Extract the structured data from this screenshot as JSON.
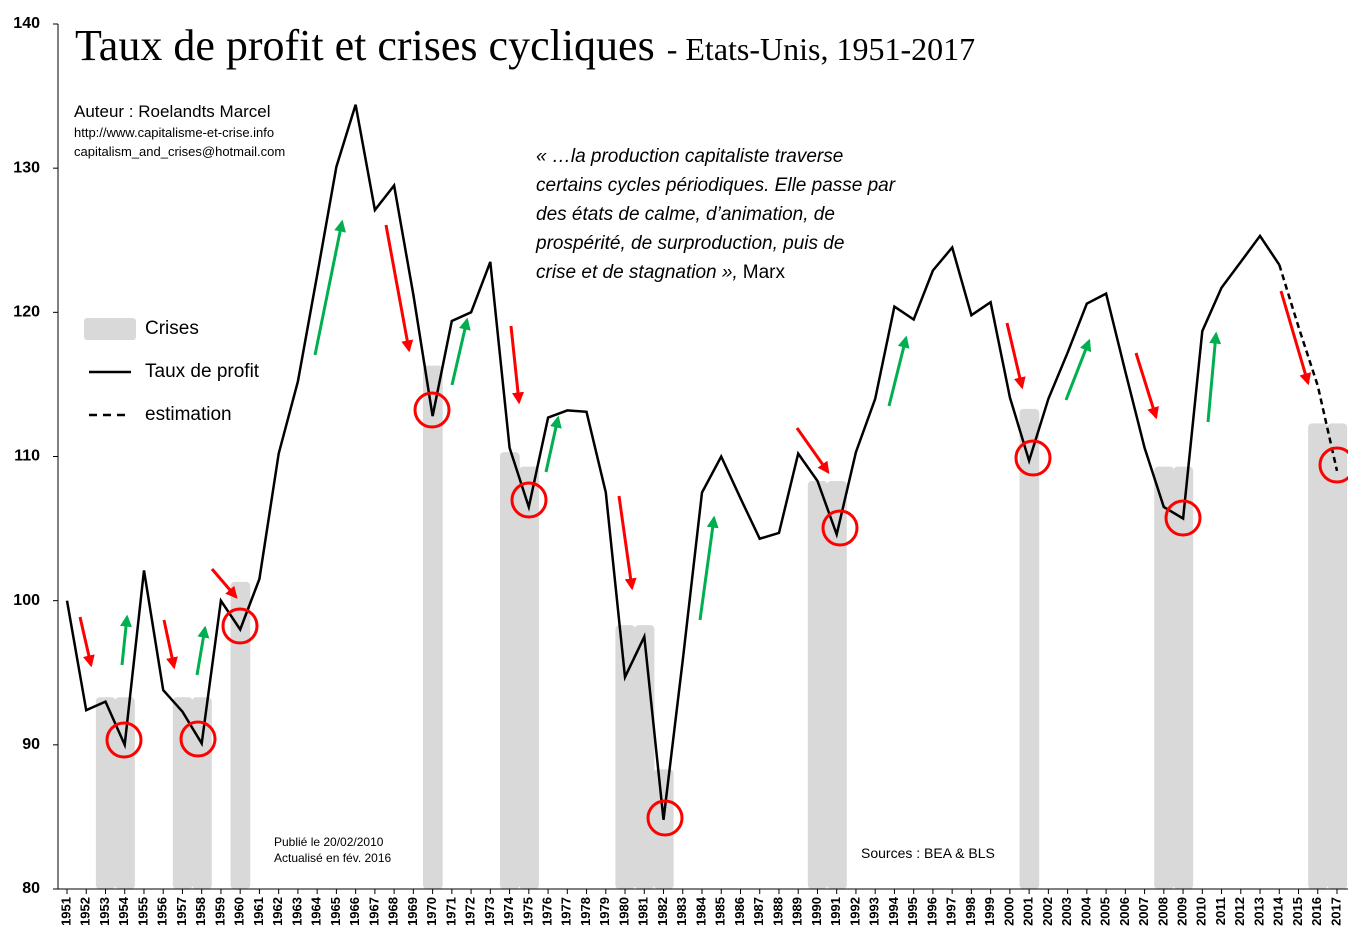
{
  "chart_data": {
    "type": "combo",
    "title": "Taux de profit et crises cycliques",
    "subtitle": "- Etats-Unis, 1951-2017",
    "author": "Auteur : Roelandts Marcel",
    "website": "http://www.capitalisme-et-crise.info",
    "email": "capitalism_and_crises@hotmail.com",
    "quote_lines": [
      "« …la production capitaliste traverse",
      "certains cycles périodiques. Elle passe par",
      "des états de calme, d’animation, de",
      "prospérité, de surproduction, puis de",
      "crise et de stagnation »,"
    ],
    "quote_attribution": "Marx",
    "published": "Publié le 20/02/2010",
    "updated": "Actualisé en fév. 2016",
    "sources": "Sources : BEA & BLS",
    "categories": [
      "1951",
      "1952",
      "1953",
      "1954",
      "1955",
      "1956",
      "1957",
      "1958",
      "1959",
      "1960",
      "1961",
      "1962",
      "1963",
      "1964",
      "1965",
      "1966",
      "1967",
      "1968",
      "1969",
      "1970",
      "1971",
      "1972",
      "1973",
      "1974",
      "1975",
      "1976",
      "1977",
      "1978",
      "1979",
      "1980",
      "1981",
      "1982",
      "1983",
      "1984",
      "1985",
      "1986",
      "1987",
      "1988",
      "1989",
      "1990",
      "1991",
      "1992",
      "1993",
      "1994",
      "1995",
      "1996",
      "1997",
      "1998",
      "1999",
      "2000",
      "2001",
      "2002",
      "2003",
      "2004",
      "2005",
      "2006",
      "2007",
      "2008",
      "2009",
      "2010",
      "2011",
      "2012",
      "2013",
      "2014",
      "2015",
      "2016",
      "2017"
    ],
    "series": [
      {
        "name": "Crises",
        "type": "bar",
        "color": "#d9d9d9",
        "values": [
          null,
          null,
          93.3,
          93.3,
          null,
          null,
          93.3,
          93.3,
          null,
          101.3,
          null,
          null,
          null,
          null,
          null,
          null,
          null,
          null,
          null,
          116.3,
          null,
          null,
          null,
          110.3,
          109.3,
          null,
          null,
          null,
          null,
          98.3,
          98.3,
          88.3,
          null,
          null,
          null,
          null,
          null,
          null,
          null,
          108.3,
          108.3,
          null,
          null,
          null,
          null,
          null,
          null,
          null,
          null,
          null,
          113.3,
          null,
          null,
          null,
          null,
          null,
          null,
          109.3,
          109.3,
          null,
          null,
          null,
          null,
          null,
          null,
          112.3,
          112.3
        ]
      },
      {
        "name": "Taux de profit",
        "type": "line",
        "color": "#000000",
        "dashed": false,
        "values": [
          100,
          92.4,
          93.0,
          90.0,
          102.1,
          93.8,
          92.3,
          90.1,
          100.0,
          98.0,
          101.5,
          110.2,
          115.2,
          122.6,
          130.1,
          134.4,
          127.1,
          128.8,
          121.2,
          112.8,
          119.4,
          120.0,
          123.5,
          110.6,
          106.5,
          112.7,
          113.2,
          113.1,
          107.5,
          94.7,
          97.5,
          84.8,
          95.9,
          107.5,
          110.0,
          107.1,
          104.3,
          104.7,
          110.2,
          108.3,
          104.6,
          110.3,
          114.0,
          120.4,
          119.5,
          122.9,
          124.5,
          119.8,
          120.7,
          114.1,
          109.7,
          114.0,
          117.2,
          120.6,
          121.3,
          115.9,
          110.6,
          106.5,
          105.7,
          118.7,
          121.7,
          123.5,
          125.3,
          123.3,
          null,
          null,
          null
        ]
      },
      {
        "name": "estimation",
        "type": "line",
        "color": "#000000",
        "dashed": true,
        "values": [
          null,
          null,
          null,
          null,
          null,
          null,
          null,
          null,
          null,
          null,
          null,
          null,
          null,
          null,
          null,
          null,
          null,
          null,
          null,
          null,
          null,
          null,
          null,
          null,
          null,
          null,
          null,
          null,
          null,
          null,
          null,
          null,
          null,
          null,
          null,
          null,
          null,
          null,
          null,
          null,
          null,
          null,
          null,
          null,
          null,
          null,
          null,
          null,
          null,
          null,
          null,
          null,
          null,
          null,
          null,
          null,
          null,
          null,
          null,
          null,
          null,
          null,
          null,
          123.3,
          119.0,
          114.9,
          109.0
        ]
      }
    ],
    "ylim": [
      80,
      140
    ],
    "yticks": [
      80,
      90,
      100,
      110,
      120,
      130,
      140
    ],
    "grid": false,
    "legend": "left"
  }
}
